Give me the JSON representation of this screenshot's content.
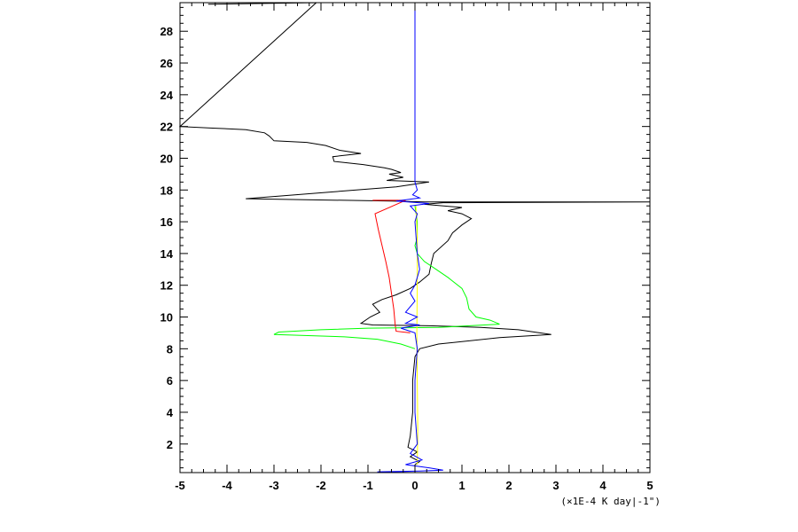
{
  "chart_data": {
    "type": "line",
    "title": "",
    "xlabel": "",
    "ylabel": "",
    "x_unit_label": "(×1E-4 K day|-1\")",
    "xlim": [
      -5,
      5
    ],
    "ylim": [
      0.2,
      29.8
    ],
    "x_ticks": [
      -5,
      -4,
      -3,
      -2,
      -1,
      0,
      1,
      2,
      3,
      4,
      5
    ],
    "y_ticks": [
      2,
      4,
      6,
      8,
      10,
      12,
      14,
      16,
      18,
      20,
      22,
      24,
      26,
      28
    ],
    "grid": false,
    "series": [
      {
        "color": "#000000",
        "points": [
          [
            -4.4,
            29.7
          ],
          [
            -2.1,
            29.8
          ],
          [
            -5.0,
            22.0
          ],
          [
            -4.3,
            21.9
          ],
          [
            -3.6,
            21.8
          ],
          [
            -3.2,
            21.6
          ],
          [
            -3.1,
            21.4
          ],
          [
            -3.0,
            21.1
          ],
          [
            -2.3,
            21.0
          ],
          [
            -1.9,
            20.8
          ],
          [
            -1.6,
            20.5
          ],
          [
            -1.15,
            20.3
          ],
          [
            -1.75,
            20.1
          ],
          [
            -1.72,
            19.8
          ],
          [
            -1.1,
            19.6
          ],
          [
            -0.65,
            19.4
          ],
          [
            -0.5,
            19.3
          ],
          [
            -0.3,
            19.1
          ],
          [
            -0.55,
            19.0
          ],
          [
            -0.25,
            18.8
          ],
          [
            -0.6,
            18.6
          ],
          [
            0.3,
            18.5
          ],
          [
            -0.4,
            18.2
          ],
          [
            -3.6,
            17.45
          ],
          [
            -0.5,
            17.3
          ],
          [
            0.2,
            17.25
          ],
          [
            5.0,
            17.25
          ],
          [
            0.6,
            17.2
          ],
          [
            0.2,
            17.1
          ],
          [
            1.0,
            16.9
          ],
          [
            0.7,
            16.7
          ],
          [
            1.0,
            16.5
          ],
          [
            1.2,
            16.2
          ],
          [
            1.0,
            15.8
          ],
          [
            0.8,
            15.3
          ],
          [
            0.7,
            14.8
          ],
          [
            0.4,
            14.0
          ],
          [
            0.35,
            13.4
          ],
          [
            0.3,
            12.7
          ],
          [
            0.1,
            12.2
          ],
          [
            -0.1,
            11.8
          ],
          [
            -0.4,
            11.4
          ],
          [
            -0.7,
            11.1
          ],
          [
            -0.9,
            10.8
          ],
          [
            -0.75,
            10.3
          ],
          [
            -0.95,
            10.0
          ],
          [
            -1.15,
            9.6
          ],
          [
            -0.9,
            9.5
          ],
          [
            0.3,
            9.45
          ],
          [
            1.4,
            9.35
          ],
          [
            2.2,
            9.2
          ],
          [
            2.9,
            8.9
          ],
          [
            1.8,
            8.7
          ],
          [
            0.5,
            8.3
          ],
          [
            0.1,
            8.0
          ],
          [
            0.0,
            7.5
          ],
          [
            -0.05,
            6.0
          ],
          [
            -0.05,
            4.0
          ],
          [
            -0.1,
            2.5
          ],
          [
            -0.15,
            1.8
          ],
          [
            0.05,
            1.5
          ],
          [
            -0.1,
            1.2
          ],
          [
            0.1,
            0.9
          ],
          [
            0.0,
            0.7
          ]
        ]
      },
      {
        "color": "#ff0000",
        "points": [
          [
            -0.9,
            17.35
          ],
          [
            -0.2,
            17.35
          ],
          [
            -0.85,
            16.5
          ],
          [
            -0.78,
            15.5
          ],
          [
            -0.7,
            14.5
          ],
          [
            -0.62,
            13.5
          ],
          [
            -0.55,
            12.5
          ],
          [
            -0.5,
            11.5
          ],
          [
            -0.45,
            10.5
          ],
          [
            -0.42,
            9.5
          ],
          [
            -0.4,
            9.1
          ],
          [
            -0.1,
            9.0
          ]
        ]
      },
      {
        "color": "#00ff00",
        "points": [
          [
            0.0,
            17.0
          ],
          [
            0.05,
            16.0
          ],
          [
            0.05,
            15.0
          ],
          [
            0.0,
            14.5
          ],
          [
            0.05,
            14.0
          ],
          [
            0.2,
            13.5
          ],
          [
            0.45,
            13.0
          ],
          [
            0.7,
            12.5
          ],
          [
            1.0,
            11.8
          ],
          [
            1.1,
            11.2
          ],
          [
            1.15,
            10.5
          ],
          [
            1.3,
            10.0
          ],
          [
            1.6,
            9.8
          ],
          [
            1.8,
            9.55
          ],
          [
            0.5,
            9.35
          ],
          [
            -1.0,
            9.3
          ],
          [
            -2.0,
            9.2
          ],
          [
            -2.9,
            9.05
          ],
          [
            -3.0,
            8.9
          ],
          [
            -1.5,
            8.75
          ],
          [
            -0.8,
            8.6
          ],
          [
            -0.3,
            8.3
          ],
          [
            0.0,
            8.0
          ]
        ]
      },
      {
        "color": "#ffff00",
        "points": [
          [
            0.02,
            17.0
          ],
          [
            0.05,
            15.0
          ],
          [
            0.05,
            12.0
          ],
          [
            0.04,
            9.0
          ],
          [
            0.05,
            6.0
          ],
          [
            0.06,
            3.0
          ],
          [
            0.05,
            0.7
          ]
        ]
      },
      {
        "color": "#0000ff",
        "points": [
          [
            0.0,
            29.8
          ],
          [
            0.0,
            18.5
          ],
          [
            0.05,
            18.0
          ],
          [
            -0.05,
            17.7
          ],
          [
            0.1,
            17.5
          ],
          [
            -0.4,
            17.3
          ],
          [
            0.3,
            17.15
          ],
          [
            -0.1,
            17.0
          ],
          [
            0.05,
            16.5
          ],
          [
            0.0,
            16.0
          ],
          [
            0.05,
            14.0
          ],
          [
            0.1,
            13.0
          ],
          [
            0.0,
            12.0
          ],
          [
            -0.1,
            11.5
          ],
          [
            0.0,
            11.0
          ],
          [
            -0.2,
            10.3
          ],
          [
            0.05,
            10.0
          ],
          [
            -0.2,
            9.6
          ],
          [
            0.1,
            9.5
          ],
          [
            -0.3,
            9.3
          ],
          [
            0.0,
            9.0
          ],
          [
            0.05,
            8.0
          ],
          [
            0.0,
            6.0
          ],
          [
            0.0,
            4.0
          ],
          [
            0.05,
            2.0
          ],
          [
            -0.1,
            1.4
          ],
          [
            0.15,
            1.0
          ],
          [
            -0.2,
            0.7
          ],
          [
            0.3,
            0.5
          ],
          [
            0.6,
            0.35
          ],
          [
            0.1,
            0.3
          ],
          [
            -0.8,
            0.25
          ],
          [
            0.0,
            0.2
          ]
        ]
      }
    ]
  }
}
